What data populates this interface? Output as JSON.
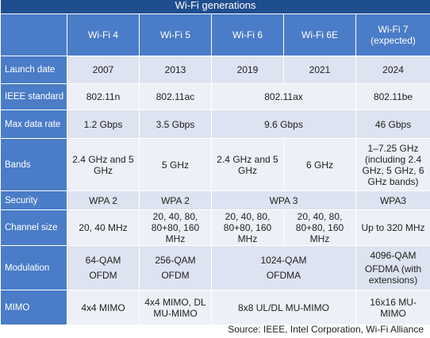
{
  "title": "Wi-Fi generations",
  "columns": [
    "Wi-Fi 4",
    "Wi-Fi 5",
    "Wi-Fi 6",
    "Wi-Fi 6E",
    "Wi-Fi 7\n(expected)"
  ],
  "rows": {
    "launch": {
      "label": "Launch date",
      "c1": "2007",
      "c2": "2013",
      "c3": "2019",
      "c4": "2021",
      "c5": "2024"
    },
    "ieee": {
      "label": "IEEE standard",
      "c1": "802.11n",
      "c2": "802.11ac",
      "c34": "802.11ax",
      "c5": "802.11be"
    },
    "maxrate": {
      "label": "Max data rate",
      "c1": "1.2 Gbps",
      "c2": "3.5 Gbps",
      "c34": "9.6 Gbps",
      "c5": "46 Gbps"
    },
    "bands": {
      "label": "Bands",
      "c1": "2.4 GHz and 5 GHz",
      "c2": "5 GHz",
      "c3": "2.4 GHz and 5 GHz",
      "c4": "6 GHz",
      "c5": "1–7.25 GHz (including 2.4 GHz, 5 GHz, 6 GHz bands)"
    },
    "security": {
      "label": "Security",
      "c1": "WPA 2",
      "c2": "WPA 2",
      "c34": "WPA 3",
      "c5": "WPA3"
    },
    "channel": {
      "label": "Channel size",
      "c1": "20, 40 MHz",
      "c2": "20, 40, 80, 80+80, 160 MHz",
      "c3": "20, 40, 80, 80+80, 160 MHz",
      "c4": "20, 40, 80, 80+80, 160 MHz",
      "c5": "Up to 320 MHz"
    },
    "modulation": {
      "label": "Modulation",
      "c1a": "64-QAM",
      "c1b": "OFDM",
      "c2a": "256-QAM",
      "c2b": "OFDM",
      "c34a": "1024-QAM",
      "c34b": "OFDMA",
      "c5a": "4096-QAM",
      "c5b": "OFDMA (with extensions)"
    },
    "mimo": {
      "label": "MIMO",
      "c1": "4x4 MIMO",
      "c2": "4x4 MIMO, DL MU-MIMO",
      "c34": "8x8 UL/DL MU-MIMO",
      "c5": "16x16 MU-MIMO"
    }
  },
  "source": "Source: IEEE, Intel Corporation, Wi-Fi Alliance"
}
